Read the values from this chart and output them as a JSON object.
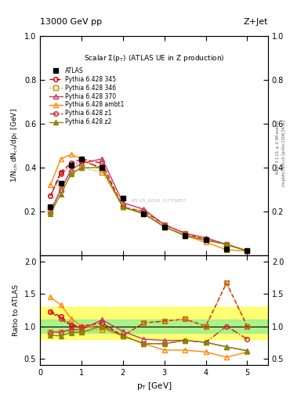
{
  "title_top": "13000 GeV pp",
  "title_right": "Z+Jet",
  "plot_title": "Scalar Σ(pₜ) (ATLAS UE in Z production)",
  "ylabel_main": "1/N$_{ch}$ dN$_{ch}$/dp$_T$ [GeV]",
  "ylabel_ratio": "Ratio to ATLAS",
  "xlabel": "p$_T$ [GeV]",
  "right_label1": "Rivet 3.1.10, ≥ 3.3M events",
  "right_label2": "mcplots.cern.ch [arXiv:1306.3436]",
  "watermark": "ATLAS_2019_I1735857",
  "x": [
    0.25,
    0.5,
    0.75,
    1.0,
    1.5,
    2.0,
    2.5,
    3.0,
    3.5,
    4.0,
    4.5,
    5.0
  ],
  "ATLAS": [
    0.22,
    0.33,
    0.41,
    0.44,
    0.4,
    0.26,
    0.19,
    0.13,
    0.09,
    0.07,
    0.03,
    0.02
  ],
  "p345": [
    0.27,
    0.38,
    0.42,
    0.44,
    0.42,
    0.22,
    0.2,
    0.14,
    0.1,
    0.07,
    0.05,
    0.02
  ],
  "p346": [
    0.2,
    0.3,
    0.38,
    0.4,
    0.38,
    0.22,
    0.2,
    0.14,
    0.1,
    0.07,
    0.05,
    0.02
  ],
  "p370": [
    0.2,
    0.3,
    0.39,
    0.42,
    0.44,
    0.24,
    0.21,
    0.14,
    0.1,
    0.08,
    0.05,
    0.02
  ],
  "pambt1": [
    0.32,
    0.44,
    0.46,
    0.44,
    0.39,
    0.22,
    0.19,
    0.13,
    0.09,
    0.06,
    0.025,
    0.02
  ],
  "pz1": [
    0.27,
    0.37,
    0.41,
    0.43,
    0.4,
    0.22,
    0.19,
    0.13,
    0.09,
    0.07,
    0.05,
    0.02
  ],
  "pz2": [
    0.19,
    0.28,
    0.37,
    0.4,
    0.4,
    0.22,
    0.19,
    0.13,
    0.09,
    0.07,
    0.05,
    0.02
  ],
  "r345": [
    1.23,
    1.15,
    1.02,
    1.0,
    1.05,
    0.85,
    1.05,
    1.08,
    1.11,
    1.0,
    1.67,
    1.0
  ],
  "r346": [
    0.91,
    0.91,
    0.93,
    0.91,
    0.95,
    0.85,
    1.05,
    1.08,
    1.11,
    1.0,
    1.67,
    1.0
  ],
  "r370": [
    0.91,
    0.91,
    0.95,
    0.95,
    1.1,
    0.92,
    0.8,
    0.78,
    0.78,
    0.75,
    0.68,
    0.62
  ],
  "rambt1": [
    1.45,
    1.33,
    1.12,
    1.0,
    0.98,
    0.85,
    0.73,
    0.63,
    0.63,
    0.6,
    0.52,
    0.6
  ],
  "rz1": [
    1.22,
    1.12,
    1.0,
    0.98,
    1.0,
    0.85,
    0.73,
    0.73,
    0.78,
    0.75,
    1.0,
    0.8
  ],
  "rz2": [
    0.86,
    0.85,
    0.9,
    0.91,
    1.0,
    0.85,
    0.73,
    0.73,
    0.78,
    0.75,
    0.68,
    0.62
  ],
  "colors": {
    "ATLAS": "#000000",
    "p345": "#cc0000",
    "p346": "#cc8800",
    "p370": "#cc3366",
    "pambt1": "#ff8800",
    "pz1": "#cc2222",
    "pz2": "#888800"
  },
  "band_green_y1": 0.9,
  "band_green_y2": 1.1,
  "band_yellow_y1": 0.8,
  "band_yellow_y2": 1.3,
  "ylim_main": [
    0.0,
    1.0
  ],
  "ylim_ratio": [
    0.4,
    2.1
  ],
  "xlim": [
    0.0,
    5.5
  ],
  "yticks_main": [
    0.2,
    0.4,
    0.6,
    0.8,
    1.0
  ],
  "yticks_ratio": [
    0.5,
    1.0,
    1.5,
    2.0
  ]
}
